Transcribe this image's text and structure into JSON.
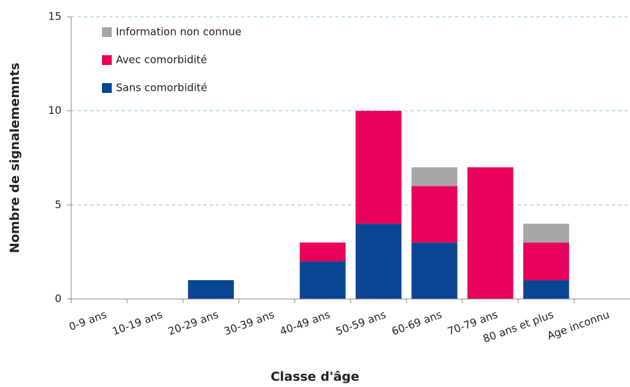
{
  "chart_data": {
    "type": "bar",
    "stacked": true,
    "x_label": "Classe d'âge",
    "y_label": "Nombre de signalememnts",
    "categories": [
      "0-9 ans",
      "10-19 ans",
      "20-29 ans",
      "30-39 ans",
      "40-49 ans",
      "50-59 ans",
      "60-69 ans",
      "70-79 ans",
      "80 ans et plus",
      "Age inconnu"
    ],
    "series": [
      {
        "name": "Sans comorbidité",
        "color": "#0a4594",
        "values": [
          0,
          0,
          1,
          0,
          2,
          4,
          3,
          0,
          1,
          0
        ]
      },
      {
        "name": "Avec comorbidité",
        "color": "#e8005a",
        "values": [
          0,
          0,
          0,
          0,
          1,
          6,
          3,
          7,
          2,
          0
        ]
      },
      {
        "name": "Information non connue",
        "color": "#a6a6a6",
        "values": [
          0,
          0,
          0,
          0,
          0,
          0,
          1,
          0,
          1,
          0
        ]
      }
    ],
    "ylim": [
      0,
      15
    ],
    "yticks": [
      0,
      5,
      10,
      15
    ],
    "grid": true,
    "legend": "upper left"
  }
}
